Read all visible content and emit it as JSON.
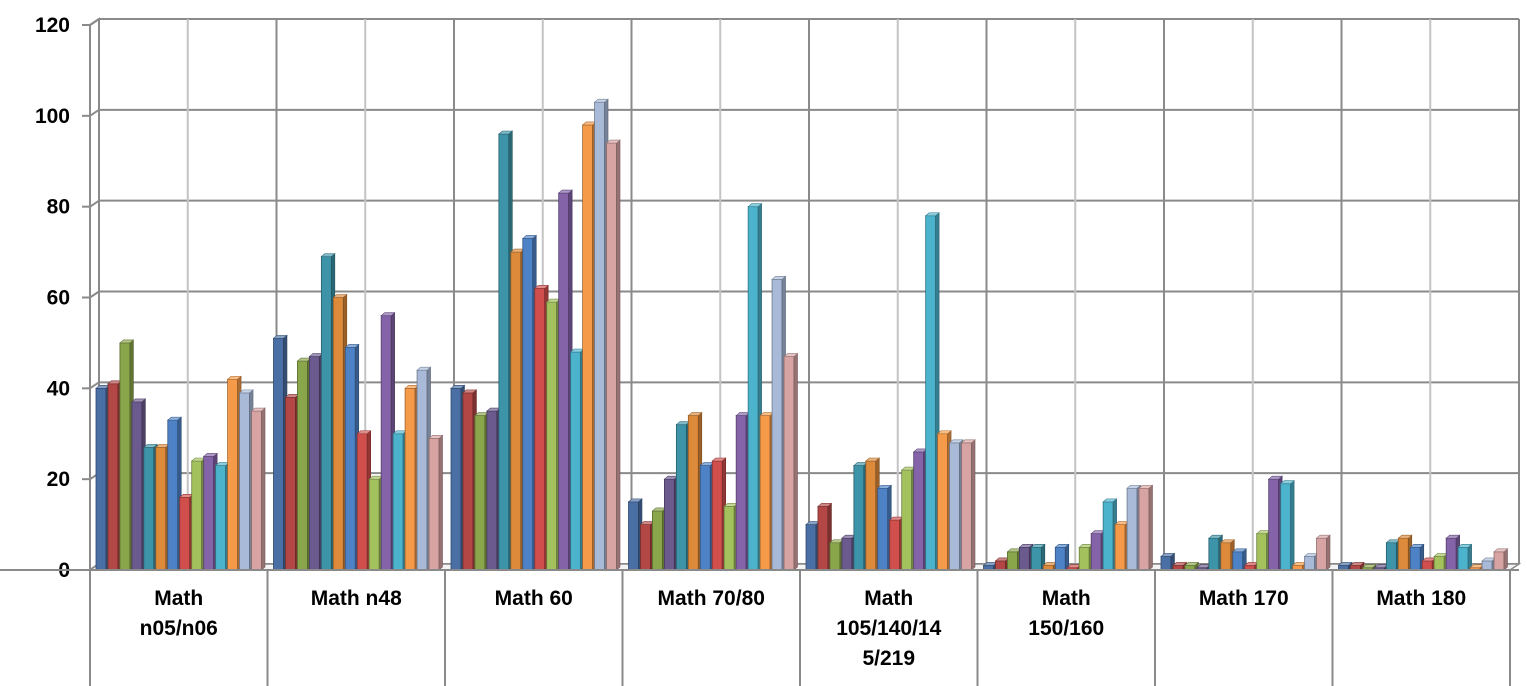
{
  "chart_data": {
    "type": "bar",
    "title": "",
    "xlabel": "",
    "ylabel": "",
    "ylim": [
      0,
      120
    ],
    "yticks": [
      0,
      20,
      40,
      60,
      80,
      100,
      120
    ],
    "grid": true,
    "style": "3d-clustered-column",
    "categories": [
      [
        "Math",
        "n05/n06"
      ],
      [
        "Math n48"
      ],
      [
        "Math 60"
      ],
      [
        "Math 70/80"
      ],
      [
        "Math",
        "105/140/14",
        "5/219"
      ],
      [
        "Math",
        "150/160"
      ],
      [
        "Math 170"
      ],
      [
        "Math 180"
      ]
    ],
    "series": [
      {
        "color": "#4a6fa5",
        "values": [
          40,
          51,
          40,
          15,
          10,
          1,
          3,
          1
        ]
      },
      {
        "color": "#b24745",
        "values": [
          41,
          38,
          39,
          10,
          14,
          2,
          1,
          1
        ]
      },
      {
        "color": "#8aa64a",
        "values": [
          50,
          46,
          34,
          13,
          6,
          4,
          1,
          0.5
        ]
      },
      {
        "color": "#6b5a8e",
        "values": [
          37,
          47,
          35,
          20,
          7,
          5,
          0.5,
          0.5
        ]
      },
      {
        "color": "#3d94a8",
        "values": [
          27,
          69,
          96,
          32,
          23,
          5,
          7,
          6
        ]
      },
      {
        "color": "#dd8a3a",
        "values": [
          27,
          60,
          70,
          34,
          24,
          1,
          6,
          7
        ]
      },
      {
        "color": "#4e82c6",
        "values": [
          33,
          49,
          73,
          23,
          18,
          5,
          4,
          5
        ]
      },
      {
        "color": "#d04e4c",
        "values": [
          16,
          30,
          62,
          24,
          11,
          0.5,
          1,
          2
        ]
      },
      {
        "color": "#a3c25e",
        "values": [
          24,
          20,
          59,
          14,
          22,
          5,
          8,
          3
        ]
      },
      {
        "color": "#8463a9",
        "values": [
          25,
          56,
          83,
          34,
          26,
          8,
          20,
          7
        ]
      },
      {
        "color": "#4bb3cc",
        "values": [
          23,
          30,
          48,
          80,
          78,
          15,
          19,
          5
        ]
      },
      {
        "color": "#f59a48",
        "values": [
          42,
          40,
          98,
          34,
          30,
          10,
          1,
          0.5
        ]
      },
      {
        "color": "#a9b9d8",
        "values": [
          39,
          44,
          103,
          64,
          28,
          18,
          3,
          2
        ]
      },
      {
        "color": "#d7a3a3",
        "values": [
          35,
          29,
          94,
          47,
          28,
          18,
          7,
          4
        ]
      }
    ]
  }
}
